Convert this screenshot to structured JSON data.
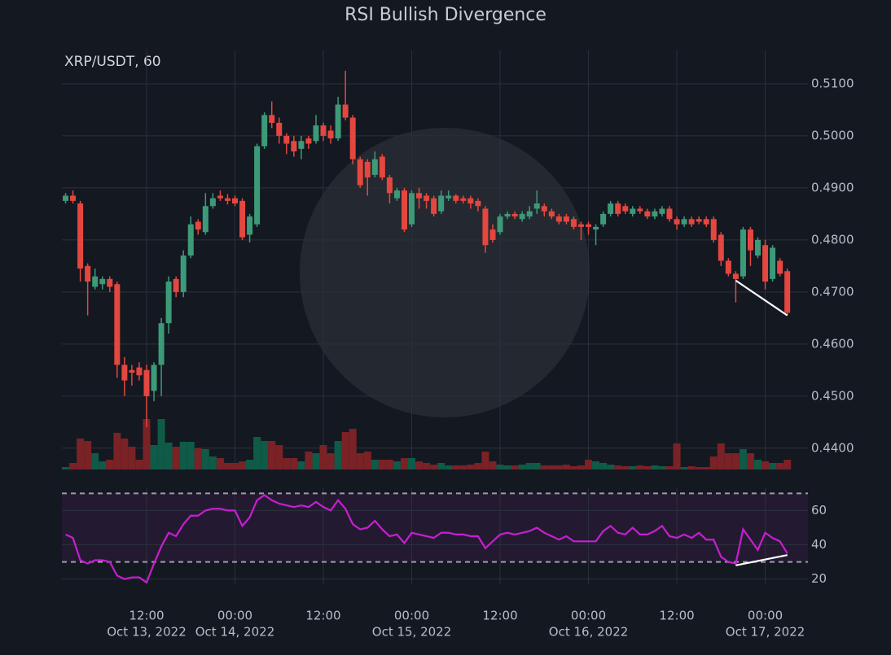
{
  "chart_data": {
    "type": "candlestick",
    "title": "RSI Bullish Divergence",
    "subtitle": "XRP/USDT, 60",
    "x": [
      "2022-10-13 01:00",
      "2022-10-13 02:00",
      "2022-10-13 03:00",
      "2022-10-13 04:00",
      "2022-10-13 05:00",
      "2022-10-13 06:00",
      "2022-10-13 07:00",
      "2022-10-13 08:00",
      "2022-10-13 09:00",
      "2022-10-13 10:00",
      "2022-10-13 11:00",
      "2022-10-13 12:00",
      "2022-10-13 13:00",
      "2022-10-13 14:00",
      "2022-10-13 15:00",
      "2022-10-13 16:00",
      "2022-10-13 17:00",
      "2022-10-13 18:00",
      "2022-10-13 19:00",
      "2022-10-13 20:00",
      "2022-10-13 21:00",
      "2022-10-13 22:00",
      "2022-10-13 23:00",
      "2022-10-14 00:00",
      "2022-10-14 01:00",
      "2022-10-14 02:00",
      "2022-10-14 03:00",
      "2022-10-14 04:00",
      "2022-10-14 05:00",
      "2022-10-14 06:00",
      "2022-10-14 07:00",
      "2022-10-14 08:00",
      "2022-10-14 09:00",
      "2022-10-14 10:00",
      "2022-10-14 11:00",
      "2022-10-14 12:00",
      "2022-10-14 13:00",
      "2022-10-14 14:00",
      "2022-10-14 15:00",
      "2022-10-14 16:00",
      "2022-10-14 17:00",
      "2022-10-14 18:00",
      "2022-10-14 19:00",
      "2022-10-14 20:00",
      "2022-10-14 21:00",
      "2022-10-14 22:00",
      "2022-10-14 23:00",
      "2022-10-15 00:00",
      "2022-10-15 01:00",
      "2022-10-15 02:00",
      "2022-10-15 03:00",
      "2022-10-15 04:00",
      "2022-10-15 05:00",
      "2022-10-15 06:00",
      "2022-10-15 07:00",
      "2022-10-15 08:00",
      "2022-10-15 09:00",
      "2022-10-15 10:00",
      "2022-10-15 11:00",
      "2022-10-15 12:00",
      "2022-10-15 13:00",
      "2022-10-15 14:00",
      "2022-10-15 15:00",
      "2022-10-15 16:00",
      "2022-10-15 17:00",
      "2022-10-15 18:00",
      "2022-10-15 19:00",
      "2022-10-15 20:00",
      "2022-10-15 21:00",
      "2022-10-15 22:00",
      "2022-10-15 23:00",
      "2022-10-16 00:00",
      "2022-10-16 01:00",
      "2022-10-16 02:00",
      "2022-10-16 03:00",
      "2022-10-16 04:00",
      "2022-10-16 05:00",
      "2022-10-16 06:00",
      "2022-10-16 07:00",
      "2022-10-16 08:00",
      "2022-10-16 09:00",
      "2022-10-16 10:00",
      "2022-10-16 11:00",
      "2022-10-16 12:00",
      "2022-10-16 13:00",
      "2022-10-16 14:00",
      "2022-10-16 15:00",
      "2022-10-16 16:00",
      "2022-10-16 17:00",
      "2022-10-16 18:00",
      "2022-10-16 19:00",
      "2022-10-16 20:00",
      "2022-10-16 21:00",
      "2022-10-16 22:00",
      "2022-10-16 23:00",
      "2022-10-17 00:00",
      "2022-10-17 01:00",
      "2022-10-17 02:00",
      "2022-10-17 03:00"
    ],
    "open": [
      0.4875,
      0.4885,
      0.487,
      0.475,
      0.471,
      0.4715,
      0.4725,
      0.4715,
      0.456,
      0.455,
      0.4555,
      0.455,
      0.451,
      0.456,
      0.464,
      0.4725,
      0.47,
      0.477,
      0.4835,
      0.4815,
      0.4865,
      0.4885,
      0.488,
      0.488,
      0.4875,
      0.481,
      0.483,
      0.498,
      0.504,
      0.5025,
      0.5,
      0.499,
      0.4975,
      0.4995,
      0.499,
      0.502,
      0.501,
      0.4995,
      0.506,
      0.5035,
      0.4955,
      0.495,
      0.4925,
      0.496,
      0.492,
      0.488,
      0.4895,
      0.483,
      0.489,
      0.4885,
      0.488,
      0.4855,
      0.488,
      0.4885,
      0.488,
      0.488,
      0.4875,
      0.486,
      0.482,
      0.4815,
      0.4845,
      0.485,
      0.484,
      0.4845,
      0.486,
      0.4865,
      0.4855,
      0.4845,
      0.4845,
      0.484,
      0.483,
      0.483,
      0.482,
      0.483,
      0.485,
      0.487,
      0.4865,
      0.485,
      0.486,
      0.4855,
      0.4845,
      0.485,
      0.486,
      0.484,
      0.483,
      0.484,
      0.484,
      0.484,
      0.484,
      0.481,
      0.476,
      0.4735,
      0.473,
      0.482,
      0.477,
      0.479,
      0.4725,
      0.476,
      0.474
    ],
    "high": [
      0.489,
      0.4895,
      0.4875,
      0.4755,
      0.4745,
      0.473,
      0.473,
      0.472,
      0.4575,
      0.456,
      0.4565,
      0.456,
      0.4565,
      0.465,
      0.473,
      0.473,
      0.478,
      0.4845,
      0.484,
      0.489,
      0.489,
      0.4895,
      0.4888,
      0.4885,
      0.488,
      0.485,
      0.4985,
      0.5045,
      0.5066,
      0.5035,
      0.5005,
      0.5,
      0.5,
      0.5,
      0.504,
      0.5025,
      0.502,
      0.5075,
      0.5125,
      0.504,
      0.496,
      0.4955,
      0.497,
      0.4965,
      0.4925,
      0.49,
      0.49,
      0.4895,
      0.49,
      0.489,
      0.4885,
      0.4895,
      0.4895,
      0.4888,
      0.4885,
      0.4885,
      0.488,
      0.4865,
      0.483,
      0.485,
      0.4855,
      0.4855,
      0.4855,
      0.4865,
      0.4895,
      0.487,
      0.486,
      0.485,
      0.485,
      0.4845,
      0.4835,
      0.4835,
      0.483,
      0.4855,
      0.4875,
      0.4875,
      0.487,
      0.4865,
      0.4865,
      0.486,
      0.486,
      0.4865,
      0.4865,
      0.4845,
      0.4845,
      0.4845,
      0.4845,
      0.4845,
      0.4845,
      0.4815,
      0.4765,
      0.474,
      0.4825,
      0.4825,
      0.4805,
      0.48,
      0.479,
      0.4765,
      0.4745
    ],
    "low": [
      0.487,
      0.487,
      0.472,
      0.4655,
      0.4705,
      0.4705,
      0.47,
      0.4535,
      0.45,
      0.452,
      0.453,
      0.444,
      0.449,
      0.45,
      0.462,
      0.469,
      0.469,
      0.4765,
      0.481,
      0.481,
      0.486,
      0.4875,
      0.4868,
      0.4865,
      0.48,
      0.4795,
      0.4825,
      0.4975,
      0.5015,
      0.4985,
      0.4965,
      0.496,
      0.4955,
      0.4975,
      0.4985,
      0.499,
      0.4985,
      0.499,
      0.503,
      0.4945,
      0.49,
      0.4885,
      0.492,
      0.4915,
      0.487,
      0.4875,
      0.4815,
      0.4825,
      0.486,
      0.486,
      0.4845,
      0.485,
      0.4875,
      0.487,
      0.487,
      0.486,
      0.4855,
      0.4775,
      0.4795,
      0.481,
      0.484,
      0.484,
      0.4835,
      0.484,
      0.485,
      0.4845,
      0.484,
      0.483,
      0.483,
      0.482,
      0.48,
      0.481,
      0.479,
      0.4825,
      0.4845,
      0.4845,
      0.485,
      0.4845,
      0.485,
      0.484,
      0.484,
      0.4845,
      0.4835,
      0.482,
      0.4825,
      0.4825,
      0.483,
      0.4825,
      0.4795,
      0.475,
      0.473,
      0.468,
      0.4725,
      0.475,
      0.4765,
      0.4705,
      0.472,
      0.473,
      0.4655
    ],
    "close": [
      0.4885,
      0.4875,
      0.4745,
      0.472,
      0.473,
      0.4725,
      0.471,
      0.456,
      0.453,
      0.4545,
      0.454,
      0.45,
      0.456,
      0.464,
      0.472,
      0.47,
      0.477,
      0.483,
      0.482,
      0.4865,
      0.488,
      0.488,
      0.4875,
      0.487,
      0.4805,
      0.4845,
      0.498,
      0.504,
      0.5025,
      0.5,
      0.4985,
      0.497,
      0.499,
      0.4985,
      0.502,
      0.5,
      0.4995,
      0.506,
      0.5035,
      0.4955,
      0.4905,
      0.492,
      0.4955,
      0.492,
      0.489,
      0.4895,
      0.482,
      0.489,
      0.488,
      0.4875,
      0.485,
      0.4885,
      0.4885,
      0.4875,
      0.4875,
      0.487,
      0.4865,
      0.479,
      0.48,
      0.4845,
      0.485,
      0.4845,
      0.485,
      0.4855,
      0.487,
      0.4855,
      0.4845,
      0.4835,
      0.4835,
      0.4825,
      0.4825,
      0.4825,
      0.4825,
      0.485,
      0.487,
      0.485,
      0.4855,
      0.486,
      0.4855,
      0.4845,
      0.4855,
      0.486,
      0.484,
      0.483,
      0.484,
      0.483,
      0.4835,
      0.483,
      0.48,
      0.476,
      0.4735,
      0.4725,
      0.482,
      0.478,
      0.48,
      0.472,
      0.4785,
      0.4735,
      0.466
    ],
    "volume": [
      3,
      8,
      38,
      35,
      20,
      10,
      12,
      45,
      38,
      28,
      12,
      62,
      30,
      62,
      33,
      28,
      34,
      34,
      26,
      25,
      16,
      14,
      8,
      8,
      10,
      12,
      40,
      35,
      35,
      30,
      14,
      14,
      10,
      22,
      20,
      30,
      20,
      35,
      46,
      50,
      20,
      22,
      12,
      12,
      12,
      10,
      14,
      14,
      10,
      8,
      6,
      8,
      5,
      5,
      5,
      6,
      8,
      22,
      10,
      6,
      5,
      5,
      6,
      8,
      8,
      5,
      5,
      5,
      6,
      4,
      5,
      12,
      10,
      8,
      6,
      5,
      4,
      4,
      5,
      4,
      5,
      4,
      4,
      32,
      3,
      4,
      3,
      3,
      16,
      32,
      20,
      20,
      25,
      20,
      12,
      10,
      8,
      8,
      12
    ],
    "up_color": "#3d9a78",
    "down_color": "#e4473f",
    "volume_up_color": "#0f5b47",
    "volume_down_color": "#7a2226",
    "ylim": [
      0.4359,
      0.5164
    ],
    "yticks": [
      {
        "value": 0.44,
        "label": "0.4400"
      },
      {
        "value": 0.45,
        "label": "0.4500"
      },
      {
        "value": 0.46,
        "label": "0.4600"
      },
      {
        "value": 0.47,
        "label": "0.4700"
      },
      {
        "value": 0.48,
        "label": "0.4800"
      },
      {
        "value": 0.49,
        "label": "0.4900"
      },
      {
        "value": 0.5,
        "label": "0.5000"
      },
      {
        "value": 0.51,
        "label": "0.5100"
      }
    ],
    "xlim": [
      "2022-10-13 00:30",
      "2022-10-17 05:48"
    ],
    "xticks": [
      {
        "value": "2022-10-13 12:00",
        "label": "12:00",
        "date": "Oct 13, 2022"
      },
      {
        "value": "2022-10-14 00:00",
        "label": "00:00",
        "date": "Oct 14, 2022"
      },
      {
        "value": "2022-10-14 12:00",
        "label": "12:00"
      },
      {
        "value": "2022-10-15 00:00",
        "label": "00:00",
        "date": "Oct 15, 2022"
      },
      {
        "value": "2022-10-15 12:00",
        "label": "12:00"
      },
      {
        "value": "2022-10-16 00:00",
        "label": "00:00",
        "date": "Oct 16, 2022"
      },
      {
        "value": "2022-10-16 12:00",
        "label": "12:00"
      },
      {
        "value": "2022-10-17 00:00",
        "label": "00:00",
        "date": "Oct 17, 2022"
      }
    ],
    "grid": true,
    "rsi": {
      "values": [
        46,
        44,
        31,
        29,
        31,
        31,
        30,
        22,
        20,
        21,
        21,
        18,
        29,
        39,
        47,
        45,
        52,
        57,
        57,
        60,
        61,
        61,
        60,
        60,
        51,
        56,
        66,
        69,
        66,
        64,
        63,
        62,
        63,
        62,
        65,
        62,
        60,
        66,
        61,
        52,
        49,
        50,
        54,
        49,
        45,
        46,
        41,
        47,
        46,
        45,
        44,
        47,
        47,
        46,
        46,
        45,
        45,
        38,
        42,
        46,
        47,
        46,
        47,
        48,
        50,
        47,
        45,
        43,
        45,
        42,
        42,
        42,
        42,
        48,
        51,
        47,
        46,
        50,
        46,
        46,
        48,
        51,
        45,
        44,
        46,
        44,
        47,
        43,
        43,
        33,
        30,
        29,
        49,
        43,
        37,
        47,
        44,
        42,
        35
      ],
      "color": "#c61fcf",
      "ylim": [
        17,
        73
      ],
      "yticks": [
        20,
        40,
        60
      ],
      "levels": [
        30,
        70
      ],
      "band_color": "#231a32"
    },
    "divergence": {
      "color": "#ffffff",
      "price": {
        "x": [
          "2022-10-16 20:00",
          "2022-10-17 03:00"
        ],
        "values": [
          0.4722,
          0.4655
        ]
      },
      "rsi": {
        "x": [
          "2022-10-16 20:00",
          "2022-10-17 03:00"
        ],
        "values": [
          28,
          34
        ]
      }
    }
  }
}
